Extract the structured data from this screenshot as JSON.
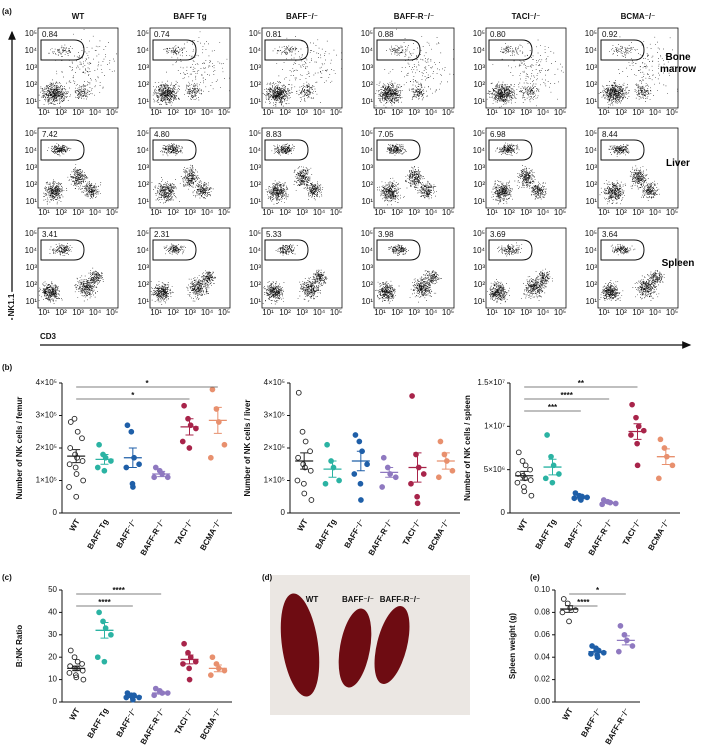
{
  "panel_labels": [
    "(a)",
    "(b)",
    "(c)",
    "(d)",
    "(e)"
  ],
  "flow": {
    "genotypes": [
      "WT",
      "BAFF Tg",
      "BAFF⁻/⁻",
      "BAFF-R⁻/⁻",
      "TACI⁻/⁻",
      "BCMA⁻/⁻"
    ],
    "tissues": [
      "Bone marrow",
      "Liver",
      "Spleen"
    ],
    "gate_percentages": [
      [
        "0.84",
        "0.74",
        "0.81",
        "0.88",
        "0.80",
        "0.92"
      ],
      [
        "7.42",
        "4.80",
        "8.83",
        "7.05",
        "6.98",
        "8.44"
      ],
      [
        "3.41",
        "2.31",
        "5.33",
        "3.98",
        "3.69",
        "3.64"
      ]
    ],
    "y_axis_label": "NK1.1",
    "x_axis_label": "CD3",
    "axis_tick_labels": [
      "10¹",
      "10²",
      "10³",
      "10⁴",
      "10⁵"
    ]
  },
  "photo": {
    "labels": [
      "WT",
      "BAFF⁻/⁻",
      "BAFF-R⁻/⁻"
    ]
  },
  "chart_data": [
    {
      "type": "strip",
      "ylabel": "Number of NK cells / femur",
      "categories": [
        "WT",
        "BAFF Tg",
        "BAFF⁻/⁻",
        "BAFF-R⁻/⁻",
        "TACI⁻/⁻",
        "BCMA⁻/⁻"
      ],
      "colors": [
        "#222222",
        "#2bb3a3",
        "#1f5fa8",
        "#8f79c0",
        "#a8244a",
        "#e8906e"
      ],
      "fills": [
        "none",
        "#2bb3a3",
        "#1f5fa8",
        "#8f79c0",
        "#a8244a",
        "#e8906e"
      ],
      "values": [
        [
          280000,
          290000,
          250000,
          230000,
          200000,
          180000,
          170000,
          160000,
          150000,
          140000,
          120000,
          100000,
          80000,
          50000
        ],
        [
          210000,
          180000,
          170000,
          160000,
          140000,
          130000
        ],
        [
          270000,
          250000,
          170000,
          150000,
          140000,
          90000,
          80000
        ],
        [
          140000,
          130000,
          120000,
          110000,
          110000
        ],
        [
          330000,
          290000,
          270000,
          260000,
          220000,
          200000
        ],
        [
          380000,
          320000,
          280000,
          210000,
          170000
        ]
      ],
      "means": [
        175000,
        165000,
        170000,
        120000,
        265000,
        285000
      ],
      "errors": [
        20000,
        15000,
        30000,
        8000,
        25000,
        40000
      ],
      "ylim": [
        0,
        400000
      ],
      "yticks": [
        0,
        {
          "value": 100000,
          "label": "1×10⁵"
        },
        {
          "value": 200000,
          "label": "2×10⁵"
        },
        {
          "value": 300000,
          "label": "3×10⁵"
        },
        {
          "value": 400000,
          "label": "4×10⁵"
        }
      ],
      "annotations": [
        "*",
        "*"
      ]
    },
    {
      "type": "strip",
      "ylabel": "Number of NK cells / liver",
      "categories": [
        "WT",
        "BAFF Tg",
        "BAFF⁻/⁻",
        "BAFF-R⁻/⁻",
        "TACI⁻/⁻",
        "BCMA⁻/⁻"
      ],
      "colors": [
        "#222222",
        "#2bb3a3",
        "#1f5fa8",
        "#8f79c0",
        "#a8244a",
        "#e8906e"
      ],
      "fills": [
        "none",
        "#2bb3a3",
        "#1f5fa8",
        "#8f79c0",
        "#a8244a",
        "#e8906e"
      ],
      "values": [
        [
          370000,
          250000,
          220000,
          190000,
          170000,
          150000,
          140000,
          130000,
          100000,
          90000,
          60000,
          40000
        ],
        [
          210000,
          160000,
          140000,
          100000,
          90000
        ],
        [
          240000,
          220000,
          190000,
          150000,
          120000,
          90000,
          40000
        ],
        [
          170000,
          140000,
          120000,
          110000,
          80000
        ],
        [
          360000,
          180000,
          140000,
          120000,
          90000,
          50000,
          30000
        ],
        [
          220000,
          180000,
          160000,
          130000,
          110000
        ]
      ],
      "means": [
        160000,
        135000,
        160000,
        125000,
        140000,
        160000
      ],
      "errors": [
        25000,
        25000,
        30000,
        15000,
        45000,
        25000
      ],
      "ylim": [
        0,
        400000
      ],
      "yticks": [
        0,
        {
          "value": 100000,
          "label": "1×10⁵"
        },
        {
          "value": 200000,
          "label": "2×10⁵"
        },
        {
          "value": 300000,
          "label": "3×10⁵"
        },
        {
          "value": 400000,
          "label": "4×10⁵"
        }
      ],
      "annotations": []
    },
    {
      "type": "strip",
      "ylabel": "Number of NK cells / spleen",
      "categories": [
        "WT",
        "BAFF Tg",
        "BAFF⁻/⁻",
        "BAFF-R⁻/⁻",
        "TACI⁻/⁻",
        "BCMA⁻/⁻"
      ],
      "colors": [
        "#222222",
        "#2bb3a3",
        "#1f5fa8",
        "#8f79c0",
        "#a8244a",
        "#e8906e"
      ],
      "fills": [
        "none",
        "#2bb3a3",
        "#1f5fa8",
        "#8f79c0",
        "#a8244a",
        "#e8906e"
      ],
      "values": [
        [
          7000000,
          6000000,
          5500000,
          5000000,
          4500000,
          4300000,
          4000000,
          3800000,
          3500000,
          3000000,
          2500000,
          2000000
        ],
        [
          9000000,
          6500000,
          5500000,
          4500000,
          4000000,
          3500000
        ],
        [
          2300000,
          2000000,
          1900000,
          1800000,
          1700000,
          1600000,
          1500000
        ],
        [
          1500000,
          1300000,
          1200000,
          1100000,
          1000000
        ],
        [
          12500000,
          11000000,
          10000000,
          9500000,
          9000000,
          8000000,
          5500000
        ],
        [
          8500000,
          7500000,
          6500000,
          5500000,
          4000000
        ]
      ],
      "means": [
        4300000,
        5300000,
        1800000,
        1200000,
        9400000,
        6500000
      ],
      "errors": [
        500000,
        900000,
        150000,
        100000,
        900000,
        900000
      ],
      "ylim": [
        0,
        15000000
      ],
      "yticks": [
        0,
        {
          "value": 5000000,
          "label": "5×10⁶"
        },
        {
          "value": 10000000,
          "label": "1×10⁷"
        },
        {
          "value": 15000000,
          "label": "1.5×10⁷"
        }
      ],
      "annotations": [
        "**",
        "****",
        "***"
      ]
    },
    {
      "type": "strip",
      "ylabel": "B:NK Ratio",
      "categories": [
        "WT",
        "BAFF Tg",
        "BAFF⁻/⁻",
        "BAFF-R⁻/⁻",
        "TACI⁻/⁻",
        "BCMA⁻/⁻"
      ],
      "colors": [
        "#222222",
        "#2bb3a3",
        "#1f5fa8",
        "#8f79c0",
        "#a8244a",
        "#e8906e"
      ],
      "fills": [
        "none",
        "#2bb3a3",
        "#1f5fa8",
        "#8f79c0",
        "#a8244a",
        "#e8906e"
      ],
      "values": [
        [
          23,
          20,
          18,
          17,
          16,
          15,
          15,
          14,
          13,
          12,
          11,
          10
        ],
        [
          40,
          36,
          33,
          30,
          20,
          18
        ],
        [
          4,
          3,
          3,
          2,
          2,
          2,
          1
        ],
        [
          6,
          5,
          4,
          4,
          3
        ],
        [
          26,
          22,
          20,
          18,
          17,
          15,
          10
        ],
        [
          20,
          17,
          15,
          14,
          12
        ]
      ],
      "means": [
        15,
        32,
        2.5,
        4,
        19,
        15
      ],
      "errors": [
        1,
        3.5,
        0.5,
        0.5,
        2,
        1.5
      ],
      "ylim": [
        0,
        50
      ],
      "yticks": [
        0,
        10,
        20,
        30,
        40,
        50
      ],
      "annotations": [
        "****",
        "****"
      ]
    },
    {
      "type": "strip",
      "ylabel": "Spleen weight (g)",
      "categories": [
        "WT",
        "BAFF⁻/⁻",
        "BAFF-R⁻/⁻"
      ],
      "colors": [
        "#222222",
        "#1f5fa8",
        "#8f79c0"
      ],
      "fills": [
        "none",
        "#1f5fa8",
        "#8f79c0"
      ],
      "values": [
        [
          0.092,
          0.088,
          0.084,
          0.082,
          0.08,
          0.072
        ],
        [
          0.05,
          0.048,
          0.046,
          0.044,
          0.043,
          0.042,
          0.04
        ],
        [
          0.068,
          0.06,
          0.055,
          0.05,
          0.045
        ]
      ],
      "means": [
        0.083,
        0.045,
        0.055
      ],
      "errors": [
        0.003,
        0.001,
        0.004
      ],
      "ylim": [
        0,
        0.1
      ],
      "yticks": [
        {
          "value": 0,
          "label": "0.00"
        },
        {
          "value": 0.02,
          "label": "0.02"
        },
        {
          "value": 0.04,
          "label": "0.04"
        },
        {
          "value": 0.06,
          "label": "0.06"
        },
        {
          "value": 0.08,
          "label": "0.08"
        },
        {
          "value": 0.1,
          "label": "0.10"
        }
      ],
      "annotations": [
        "*",
        "****"
      ]
    }
  ]
}
